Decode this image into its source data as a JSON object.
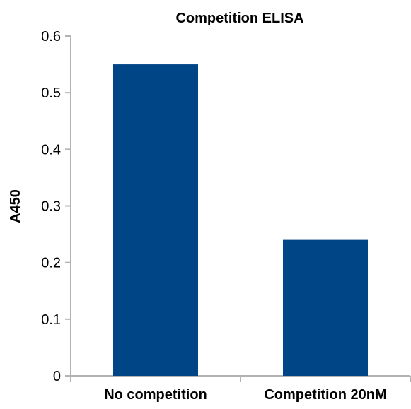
{
  "chart_data": {
    "type": "bar",
    "title": "Competition ELISA",
    "xlabel": "",
    "ylabel": "A450",
    "categories": [
      "No competition",
      "Competition 20nM"
    ],
    "values": [
      0.55,
      0.24
    ],
    "ylim": [
      0,
      0.6
    ],
    "yticks": [
      "0",
      "0.1",
      "0.2",
      "0.3",
      "0.4",
      "0.5",
      "0.6"
    ],
    "grid": false,
    "legend": "none",
    "bar_color": "#004586",
    "axis_color": "#b3b3b3"
  }
}
